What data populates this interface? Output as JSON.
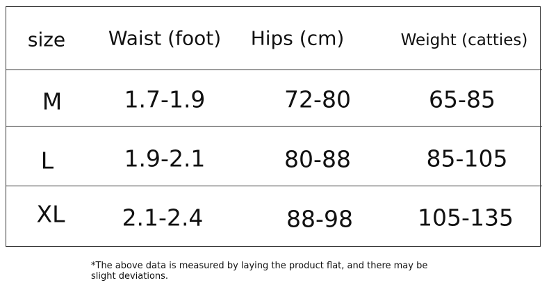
{
  "table": {
    "header": [
      "size",
      "Waist (foot)",
      "Hips (cm)",
      "Weight (catties)"
    ],
    "rows": [
      [
        "M",
        "1.7-1.9",
        "72-80",
        "65-85"
      ],
      [
        "L",
        "1.9-2.1",
        "80-88",
        "85-105"
      ],
      [
        "XL",
        "2.1-2.4",
        "88-98",
        "105-135"
      ]
    ]
  },
  "footnote": "*The above data is measured by laying the product flat, and there may be slight deviations."
}
